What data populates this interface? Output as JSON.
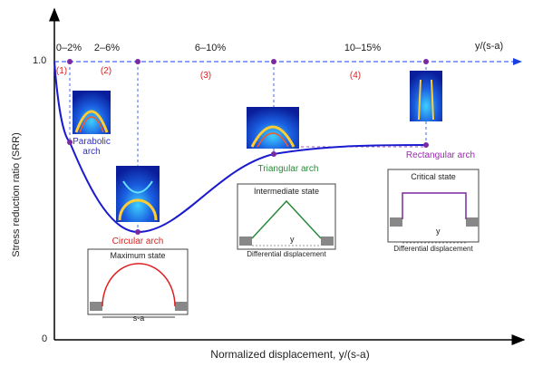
{
  "axes": {
    "y_label": "Stress reduction ratio (SRR)",
    "x_label": "Normalized displacement, y/(s-a)",
    "y_top": "1.0",
    "origin": "0"
  },
  "top_axis": {
    "label": "y/(s-a)",
    "ranges": [
      "0–2%",
      "2–6%",
      "6–10%",
      "10–15%"
    ],
    "stages": [
      "(1)",
      "(2)",
      "(3)",
      "(4)"
    ]
  },
  "arches": [
    "Parabolic arch",
    "Circular arch",
    "Triangular arch",
    "Rectangular arch"
  ],
  "insets": [
    {
      "title": "Maximum state",
      "dim": "s-a"
    },
    {
      "title": "Intermediate state",
      "dim": "y",
      "caption": "Differential displacement"
    },
    {
      "title": "Critical state",
      "dim": "y",
      "caption": "Differential displacement"
    }
  ]
}
